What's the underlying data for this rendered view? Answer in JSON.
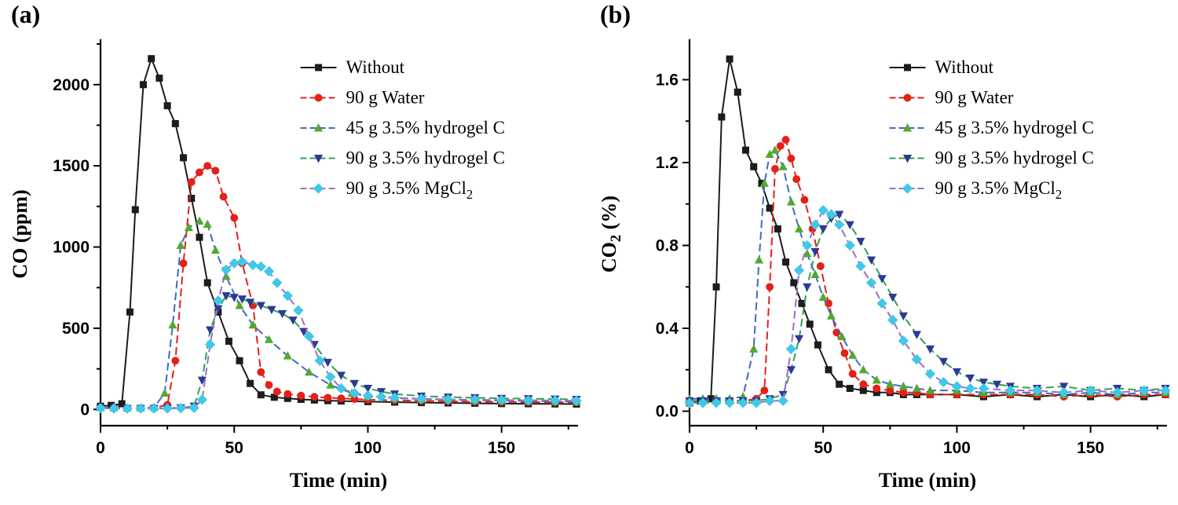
{
  "panels": [
    {
      "label": "(a)"
    },
    {
      "label": "(b)"
    }
  ],
  "chart_data": [
    {
      "type": "line",
      "panel": "(a)",
      "title": "",
      "xlabel": "Time (min)",
      "ylabel": "CO (ppm)",
      "xlim": [
        0,
        178
      ],
      "ylim": [
        -100,
        2260
      ],
      "xticks": [
        0,
        50,
        100,
        150
      ],
      "xticklabels": [
        "0",
        "50",
        "100",
        "150"
      ],
      "xminor": [
        25,
        75,
        125,
        175
      ],
      "yticks": [
        0,
        500,
        1000,
        1500,
        2000
      ],
      "yticklabels": [
        "0",
        "500",
        "1000",
        "1500",
        "2000"
      ],
      "yminor": [
        250,
        750,
        1250,
        1750,
        2250
      ],
      "grid": false,
      "legend_position": "upper-right-inside",
      "series": [
        {
          "id": "without",
          "name": "Without",
          "marker": "square",
          "line_color": "#1c1c1c",
          "marker_color": "#1c1c1c",
          "dash": "",
          "x": [
            0,
            4,
            8,
            11,
            13,
            16,
            19,
            22,
            25,
            28,
            31,
            34,
            37,
            40,
            44,
            48,
            52,
            56,
            60,
            65,
            70,
            75,
            80,
            85,
            90,
            100,
            110,
            120,
            130,
            140,
            150,
            160,
            170,
            178
          ],
          "y": [
            20,
            25,
            35,
            600,
            1230,
            2000,
            2160,
            2040,
            1870,
            1760,
            1550,
            1300,
            1060,
            780,
            600,
            420,
            300,
            160,
            90,
            75,
            68,
            62,
            58,
            54,
            52,
            48,
            45,
            42,
            40,
            38,
            36,
            35,
            34,
            33
          ]
        },
        {
          "id": "water",
          "name": "90 g Water",
          "marker": "circle",
          "line_color": "#e32119",
          "marker_color": "#e32119",
          "dash": "10 5",
          "x": [
            0,
            5,
            10,
            15,
            20,
            25,
            28,
            31,
            34,
            37,
            40,
            43,
            46,
            50,
            53,
            57,
            60,
            63,
            66,
            70,
            75,
            80,
            85,
            90,
            95,
            100,
            110,
            120,
            130,
            140,
            150,
            160,
            170,
            178
          ],
          "y": [
            12,
            10,
            9,
            9,
            10,
            28,
            300,
            900,
            1400,
            1460,
            1500,
            1470,
            1310,
            1180,
            900,
            640,
            230,
            150,
            110,
            95,
            85,
            78,
            72,
            68,
            64,
            60,
            56,
            53,
            50,
            48,
            46,
            45,
            44,
            43
          ]
        },
        {
          "id": "hydrogel45",
          "name": "45 g 3.5% hydrogel C",
          "marker": "triangle-up",
          "line_color": "#3f6bc1",
          "marker_color": "#52a832",
          "dash": "10 5",
          "x": [
            0,
            5,
            10,
            15,
            20,
            24,
            27,
            30,
            33,
            37,
            40,
            43,
            47,
            52,
            57,
            63,
            70,
            78,
            86,
            94,
            100,
            110,
            120,
            130,
            140,
            150,
            160,
            170,
            178
          ],
          "y": [
            12,
            10,
            9,
            9,
            12,
            100,
            520,
            1010,
            1120,
            1160,
            1140,
            980,
            820,
            640,
            520,
            430,
            330,
            230,
            150,
            100,
            80,
            70,
            64,
            60,
            57,
            54,
            52,
            50,
            48
          ]
        },
        {
          "id": "hydrogel90",
          "name": "90 g 3.5% hydrogel C",
          "marker": "triangle-down",
          "line_color": "#2fa352",
          "marker_color": "#2b3a94",
          "dash": "10 5",
          "x": [
            0,
            5,
            10,
            15,
            20,
            25,
            30,
            35,
            38,
            41,
            44,
            47,
            50,
            53,
            56,
            60,
            64,
            68,
            72,
            76,
            80,
            85,
            90,
            95,
            100,
            105,
            110,
            120,
            130,
            140,
            150,
            160,
            170,
            178
          ],
          "y": [
            8,
            6,
            6,
            6,
            6,
            8,
            10,
            20,
            180,
            490,
            620,
            700,
            690,
            680,
            660,
            640,
            615,
            590,
            550,
            480,
            400,
            290,
            210,
            160,
            130,
            110,
            95,
            82,
            76,
            72,
            68,
            66,
            64,
            62
          ]
        },
        {
          "id": "mgcl2",
          "name": "90 g 3.5% MgCl_2",
          "marker": "diamond",
          "line_color": "#a06cc6",
          "marker_color": "#40c8e8",
          "dash": "10 5",
          "x": [
            0,
            5,
            10,
            15,
            20,
            25,
            30,
            35,
            38,
            41,
            44,
            47,
            50,
            53,
            57,
            60,
            63,
            66,
            70,
            74,
            78,
            82,
            86,
            90,
            95,
            100,
            105,
            110,
            120,
            130,
            140,
            150,
            160,
            170,
            178
          ],
          "y": [
            8,
            6,
            6,
            6,
            6,
            6,
            8,
            10,
            60,
            400,
            670,
            860,
            900,
            910,
            890,
            880,
            850,
            780,
            700,
            610,
            450,
            300,
            200,
            130,
            100,
            85,
            78,
            72,
            66,
            62,
            60,
            58,
            56,
            55,
            54
          ]
        }
      ]
    },
    {
      "type": "line",
      "panel": "(b)",
      "title": "",
      "xlabel": "Time (min)",
      "ylabel": "CO_2 (%)",
      "xlim": [
        0,
        178
      ],
      "ylim": [
        -0.07,
        1.78
      ],
      "xticks": [
        0,
        50,
        100,
        150
      ],
      "xticklabels": [
        "0",
        "50",
        "100",
        "150"
      ],
      "xminor": [
        25,
        75,
        125,
        175
      ],
      "yticks": [
        0.0,
        0.4,
        0.8,
        1.2,
        1.6
      ],
      "yticklabels": [
        "0.0",
        "0.4",
        "0.8",
        "1.2",
        "1.6"
      ],
      "yminor": [
        0.2,
        0.6,
        1.0,
        1.4
      ],
      "grid": false,
      "legend_position": "upper-right-inside",
      "series": [
        {
          "id": "without",
          "name": "Without",
          "marker": "square",
          "line_color": "#1c1c1c",
          "marker_color": "#1c1c1c",
          "dash": "",
          "x": [
            0,
            4,
            8,
            10,
            12,
            15,
            18,
            21,
            24,
            27,
            30,
            33,
            36,
            39,
            42,
            45,
            48,
            52,
            56,
            60,
            65,
            70,
            75,
            80,
            85,
            90,
            100,
            110,
            120,
            130,
            140,
            150,
            160,
            170,
            178
          ],
          "y": [
            0.04,
            0.05,
            0.06,
            0.6,
            1.42,
            1.7,
            1.54,
            1.26,
            1.18,
            1.1,
            0.98,
            0.88,
            0.72,
            0.62,
            0.52,
            0.42,
            0.32,
            0.2,
            0.13,
            0.11,
            0.1,
            0.09,
            0.09,
            0.08,
            0.08,
            0.08,
            0.08,
            0.07,
            0.08,
            0.07,
            0.08,
            0.07,
            0.08,
            0.07,
            0.08
          ]
        },
        {
          "id": "water",
          "name": "90 g Water",
          "marker": "circle",
          "line_color": "#e32119",
          "marker_color": "#e32119",
          "dash": "10 5",
          "x": [
            0,
            5,
            10,
            15,
            20,
            25,
            28,
            30,
            32,
            34,
            36,
            38,
            40,
            43,
            46,
            49,
            52,
            55,
            58,
            61,
            65,
            70,
            75,
            80,
            85,
            90,
            100,
            110,
            120,
            130,
            140,
            150,
            160,
            170,
            178
          ],
          "y": [
            0.05,
            0.05,
            0.05,
            0.05,
            0.05,
            0.06,
            0.1,
            0.6,
            1.17,
            1.28,
            1.31,
            1.22,
            1.12,
            1.02,
            0.88,
            0.7,
            0.52,
            0.38,
            0.28,
            0.18,
            0.13,
            0.11,
            0.1,
            0.09,
            0.09,
            0.08,
            0.08,
            0.08,
            0.08,
            0.08,
            0.07,
            0.08,
            0.07,
            0.08,
            0.08
          ]
        },
        {
          "id": "hydrogel45",
          "name": "45 g 3.5% hydrogel C",
          "marker": "triangle-up",
          "line_color": "#3f6bc1",
          "marker_color": "#52a832",
          "dash": "10 5",
          "x": [
            0,
            5,
            10,
            15,
            20,
            24,
            26,
            28,
            30,
            32,
            35,
            38,
            41,
            44,
            47,
            50,
            53,
            57,
            61,
            65,
            70,
            75,
            80,
            85,
            90,
            100,
            110,
            120,
            130,
            140,
            150,
            160,
            170,
            178
          ],
          "y": [
            0.06,
            0.06,
            0.06,
            0.06,
            0.07,
            0.3,
            0.73,
            1.1,
            1.24,
            1.26,
            1.18,
            1.01,
            0.88,
            0.76,
            0.66,
            0.55,
            0.46,
            0.36,
            0.27,
            0.2,
            0.15,
            0.13,
            0.12,
            0.11,
            0.1,
            0.1,
            0.09,
            0.09,
            0.09,
            0.08,
            0.09,
            0.08,
            0.09,
            0.09
          ]
        },
        {
          "id": "hydrogel90",
          "name": "90 g 3.5% hydrogel C",
          "marker": "triangle-down",
          "line_color": "#2fa352",
          "marker_color": "#2b3a94",
          "dash": "10 5",
          "x": [
            0,
            5,
            10,
            15,
            20,
            25,
            30,
            35,
            38,
            41,
            44,
            47,
            50,
            53,
            56,
            60,
            64,
            68,
            72,
            76,
            80,
            85,
            90,
            95,
            100,
            105,
            110,
            115,
            120,
            130,
            140,
            150,
            160,
            170,
            178
          ],
          "y": [
            0.05,
            0.05,
            0.05,
            0.05,
            0.05,
            0.05,
            0.06,
            0.08,
            0.2,
            0.35,
            0.6,
            0.77,
            0.88,
            0.93,
            0.95,
            0.9,
            0.82,
            0.73,
            0.64,
            0.55,
            0.46,
            0.37,
            0.3,
            0.24,
            0.19,
            0.16,
            0.14,
            0.13,
            0.12,
            0.11,
            0.12,
            0.1,
            0.11,
            0.1,
            0.11
          ]
        },
        {
          "id": "mgcl2",
          "name": "90 g 3.5% MgCl_2",
          "marker": "diamond",
          "line_color": "#a06cc6",
          "marker_color": "#40c8e8",
          "dash": "10 5",
          "x": [
            0,
            5,
            10,
            15,
            20,
            25,
            30,
            35,
            38,
            41,
            44,
            47,
            50,
            53,
            56,
            60,
            64,
            68,
            72,
            76,
            80,
            85,
            90,
            95,
            100,
            105,
            110,
            120,
            130,
            140,
            150,
            160,
            170,
            178
          ],
          "y": [
            0.04,
            0.04,
            0.04,
            0.04,
            0.04,
            0.04,
            0.05,
            0.05,
            0.3,
            0.68,
            0.8,
            0.9,
            0.97,
            0.95,
            0.9,
            0.8,
            0.7,
            0.62,
            0.52,
            0.44,
            0.34,
            0.25,
            0.18,
            0.14,
            0.12,
            0.11,
            0.11,
            0.1,
            0.1,
            0.09,
            0.1,
            0.09,
            0.1,
            0.1
          ]
        }
      ]
    }
  ]
}
